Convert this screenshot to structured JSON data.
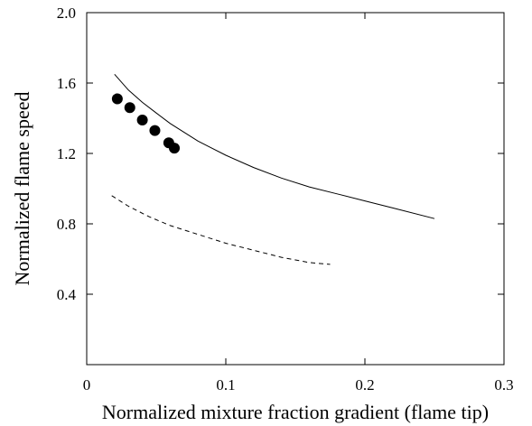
{
  "chart_data": {
    "type": "line",
    "title": "",
    "xlabel": "Normalized mixture fraction gradient (flame tip)",
    "ylabel": "Normalized flame speed",
    "xlim": [
      0,
      0.3
    ],
    "ylim": [
      0,
      2.0
    ],
    "x_ticks": [
      0,
      0.1,
      0.2,
      0.3
    ],
    "y_ticks": [
      0.4,
      0.8,
      1.2,
      1.6,
      2.0
    ],
    "x_tick_labels": [
      "0",
      "0.1",
      "0.2",
      "0.3"
    ],
    "y_tick_labels": [
      "0.4",
      "0.8",
      "1.2",
      "1.6",
      "2.0"
    ],
    "grid": false,
    "legend": "none",
    "series": [
      {
        "style": "solid",
        "color": "#000000",
        "x": [
          0.02,
          0.03,
          0.04,
          0.05,
          0.06,
          0.07,
          0.08,
          0.09,
          0.1,
          0.12,
          0.14,
          0.16,
          0.18,
          0.2,
          0.22,
          0.25
        ],
        "y": [
          1.65,
          1.56,
          1.49,
          1.43,
          1.37,
          1.32,
          1.27,
          1.23,
          1.19,
          1.12,
          1.06,
          1.01,
          0.97,
          0.93,
          0.89,
          0.83
        ]
      },
      {
        "style": "dashed",
        "color": "#000000",
        "x": [
          0.018,
          0.03,
          0.045,
          0.06,
          0.08,
          0.1,
          0.12,
          0.14,
          0.16,
          0.175
        ],
        "y": [
          0.96,
          0.9,
          0.84,
          0.79,
          0.74,
          0.69,
          0.65,
          0.61,
          0.58,
          0.57
        ]
      },
      {
        "style": "markers",
        "color": "#000000",
        "x": [
          0.022,
          0.031,
          0.04,
          0.049,
          0.059,
          0.063
        ],
        "y": [
          1.51,
          1.46,
          1.39,
          1.33,
          1.26,
          1.23
        ]
      }
    ]
  }
}
